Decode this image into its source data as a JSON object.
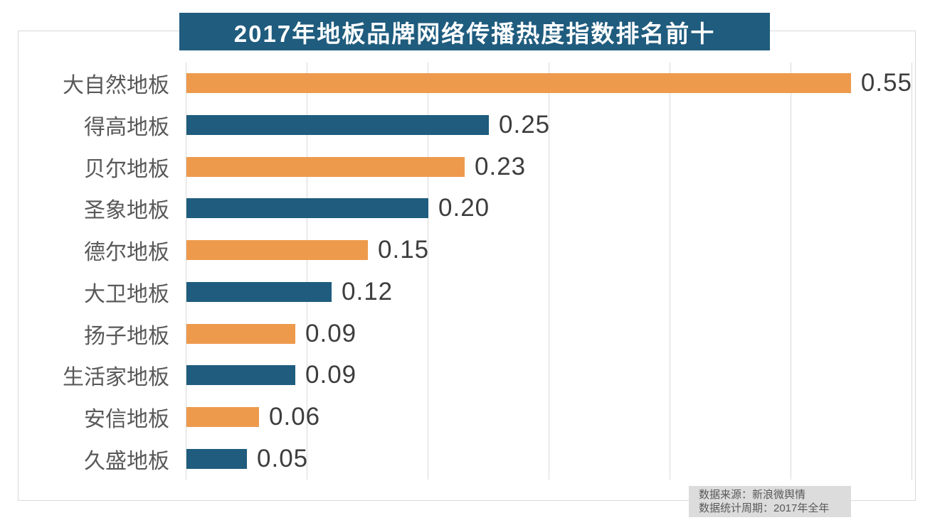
{
  "title": "2017年地板品牌网络传播热度指数排名前十",
  "colors": {
    "banner_bg": "#1f5c7e",
    "bar_orange": "#ee9a4d",
    "bar_blue": "#1f5c7e",
    "gridline": "#d9d9d9",
    "frame_border": "#d9d9d9",
    "category_text": "#595959",
    "value_text": "#3d3d3d",
    "note_bg": "#dcdcdc",
    "note_text": "#595959"
  },
  "chart_data": {
    "type": "bar",
    "orientation": "horizontal",
    "title": "2017年地板品牌网络传播热度指数排名前十",
    "categories": [
      "大自然地板",
      "得高地板",
      "贝尔地板",
      "圣象地板",
      "德尔地板",
      "大卫地板",
      "扬子地板",
      "生活家地板",
      "安信地板",
      "久盛地板"
    ],
    "values": [
      0.55,
      0.25,
      0.23,
      0.2,
      0.15,
      0.12,
      0.09,
      0.09,
      0.06,
      0.05
    ],
    "value_labels": [
      "0.55",
      "0.25",
      "0.23",
      "0.20",
      "0.15",
      "0.12",
      "0.09",
      "0.09",
      "0.06",
      "0.05"
    ],
    "bar_colors": [
      "#ee9a4d",
      "#1f5c7e",
      "#ee9a4d",
      "#1f5c7e",
      "#ee9a4d",
      "#1f5c7e",
      "#ee9a4d",
      "#1f5c7e",
      "#ee9a4d",
      "#1f5c7e"
    ],
    "xlabel": "",
    "ylabel": "",
    "xlim": [
      0,
      0.6
    ],
    "gridline_step": 0.1,
    "grid": true,
    "legend": false,
    "value_labels_shown": true
  },
  "note": {
    "line1": "数据来源：新浪微舆情",
    "line2": "数据统计周期：2017年全年"
  }
}
